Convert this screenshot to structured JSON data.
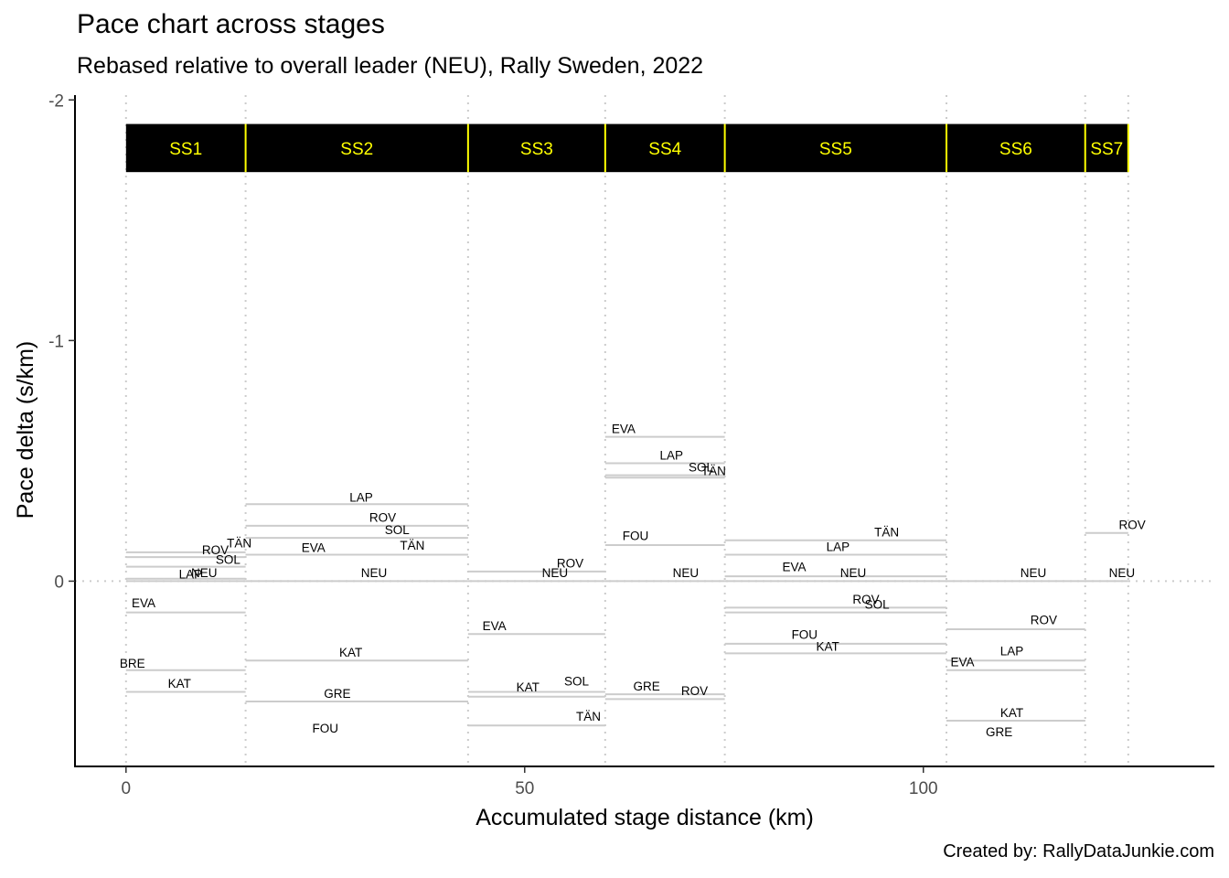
{
  "title": "Pace chart across stages",
  "subtitle": "Rebased relative to overall leader (NEU), Rally Sweden, 2022",
  "caption": "Created by: RallyDataJunkie.com",
  "chart_data": {
    "type": "line",
    "xlabel": "Accumulated stage distance (km)",
    "ylabel": "Pace delta (s/km)",
    "xlim": [
      -6.4,
      136.5
    ],
    "ylim": [
      0.77,
      -2.02
    ],
    "y_reversed": true,
    "xticks": [
      0,
      50,
      100
    ],
    "yticks": [
      -2,
      -1,
      0
    ],
    "grid": false,
    "colors": {
      "pace_line": "#cccccc",
      "boundary_line": "#cccccc",
      "stage_band": "#000000",
      "stage_label": "#ffff00",
      "stage_divider": "#ffff00"
    },
    "stage_boundaries": [
      0,
      15,
      42.9,
      60.1,
      75.1,
      102.9,
      120.3,
      125.7
    ],
    "stages": [
      {
        "name": "SS1",
        "start": 0,
        "end": 15
      },
      {
        "name": "SS2",
        "start": 15,
        "end": 42.9
      },
      {
        "name": "SS3",
        "start": 42.9,
        "end": 60.1
      },
      {
        "name": "SS4",
        "start": 60.1,
        "end": 75.1
      },
      {
        "name": "SS5",
        "start": 75.1,
        "end": 102.9
      },
      {
        "name": "SS6",
        "start": 102.9,
        "end": 120.3
      },
      {
        "name": "SS7",
        "start": 120.3,
        "end": 125.7
      }
    ],
    "stage_band_y": [
      -1.9,
      -1.7
    ],
    "segments": [
      {
        "label": "TÄN",
        "x0": 0,
        "x1": 15,
        "y": -0.12,
        "label_x": 14.2,
        "label_y": -0.16
      },
      {
        "label": "ROV",
        "x0": 0,
        "x1": 15,
        "y": -0.1,
        "label_x": 11.2,
        "label_y": -0.13
      },
      {
        "label": "SOL",
        "x0": 0,
        "x1": 15,
        "y": -0.06,
        "label_x": 12.8,
        "label_y": -0.09
      },
      {
        "label": "LAP",
        "x0": 0,
        "x1": 15,
        "y": -0.01,
        "label_x": 8.1,
        "label_y": -0.03
      },
      {
        "label": "NEU",
        "x0": 0,
        "x1": 15,
        "y": 0,
        "label_x": 9.8,
        "label_y": -0.035
      },
      {
        "label": "EVA",
        "x0": 0,
        "x1": 15,
        "y": 0.13,
        "label_x": 2.2,
        "label_y": 0.09
      },
      {
        "label": "BRE",
        "x0": 0,
        "x1": 15,
        "y": 0.37,
        "label_x": 0.8,
        "label_y": 0.34
      },
      {
        "label": "KAT",
        "x0": 0,
        "x1": 15,
        "y": 0.46,
        "label_x": 6.7,
        "label_y": 0.425
      },
      {
        "label": "LAP",
        "x0": 15,
        "x1": 42.9,
        "y": -0.32,
        "label_x": 29.5,
        "label_y": -0.35
      },
      {
        "label": "ROV",
        "x0": 15,
        "x1": 42.9,
        "y": -0.23,
        "label_x": 32.2,
        "label_y": -0.265
      },
      {
        "label": "SOL",
        "x0": 15,
        "x1": 42.9,
        "y": -0.18,
        "label_x": 34,
        "label_y": -0.215
      },
      {
        "label": "TÄN",
        "x0": 15,
        "x1": 42.9,
        "y": -0.11,
        "label_x": 35.9,
        "label_y": -0.15
      },
      {
        "label": "EVA",
        "x0": 15,
        "x1": 42.9,
        "y": -0.11,
        "label_x": 23.5,
        "label_y": -0.14
      },
      {
        "label": "NEU",
        "x0": 15,
        "x1": 42.9,
        "y": 0,
        "label_x": 31.1,
        "label_y": -0.035
      },
      {
        "label": "KAT",
        "x0": 15,
        "x1": 42.9,
        "y": 0.33,
        "label_x": 28.2,
        "label_y": 0.295
      },
      {
        "label": "GRE",
        "x0": 15,
        "x1": 42.9,
        "y": 0.5,
        "label_x": 26.5,
        "label_y": 0.465
      },
      {
        "label": "FOU",
        "x0": 15,
        "x1": 42.9,
        "y": 0.5,
        "label_x": 25,
        "label_y": 0.61
      },
      {
        "label": "ROV",
        "x0": 42.9,
        "x1": 60.1,
        "y": -0.04,
        "label_x": 55.7,
        "label_y": -0.075
      },
      {
        "label": "NEU",
        "x0": 42.9,
        "x1": 60.1,
        "y": 0,
        "label_x": 53.8,
        "label_y": -0.035
      },
      {
        "label": "EVA",
        "x0": 42.9,
        "x1": 60.1,
        "y": 0.22,
        "label_x": 46.2,
        "label_y": 0.185
      },
      {
        "label": "SOL",
        "x0": 42.9,
        "x1": 60.1,
        "y": 0.46,
        "label_x": 56.5,
        "label_y": 0.415
      },
      {
        "label": "KAT",
        "x0": 42.9,
        "x1": 60.1,
        "y": 0.48,
        "label_x": 50.4,
        "label_y": 0.44
      },
      {
        "label": "TÄN",
        "x0": 42.9,
        "x1": 60.1,
        "y": 0.6,
        "label_x": 58,
        "label_y": 0.56
      },
      {
        "label": "EVA",
        "x0": 60.1,
        "x1": 75.1,
        "y": -0.6,
        "label_x": 62.4,
        "label_y": -0.635
      },
      {
        "label": "LAP",
        "x0": 60.1,
        "x1": 75.1,
        "y": -0.49,
        "label_x": 68.4,
        "label_y": -0.525
      },
      {
        "label": "SOL",
        "x0": 60.1,
        "x1": 75.1,
        "y": -0.44,
        "label_x": 72.1,
        "label_y": -0.475
      },
      {
        "label": "TÄN",
        "x0": 60.1,
        "x1": 75.1,
        "y": -0.43,
        "label_x": 73.7,
        "label_y": -0.46
      },
      {
        "label": "FOU",
        "x0": 60.1,
        "x1": 75.1,
        "y": -0.15,
        "label_x": 63.9,
        "label_y": -0.19
      },
      {
        "label": "NEU",
        "x0": 60.1,
        "x1": 75.1,
        "y": 0,
        "label_x": 70.2,
        "label_y": -0.035
      },
      {
        "label": "GRE",
        "x0": 60.1,
        "x1": 75.1,
        "y": 0.47,
        "label_x": 65.3,
        "label_y": 0.435
      },
      {
        "label": "ROV",
        "x0": 60.1,
        "x1": 75.1,
        "y": 0.49,
        "label_x": 71.3,
        "label_y": 0.455
      },
      {
        "label": "TÄN",
        "x0": 75.1,
        "x1": 102.9,
        "y": -0.17,
        "label_x": 95.4,
        "label_y": -0.205
      },
      {
        "label": "LAP",
        "x0": 75.1,
        "x1": 102.9,
        "y": -0.11,
        "label_x": 89.3,
        "label_y": -0.145
      },
      {
        "label": "EVA",
        "x0": 75.1,
        "x1": 102.9,
        "y": -0.02,
        "label_x": 83.8,
        "label_y": -0.06
      },
      {
        "label": "NEU",
        "x0": 75.1,
        "x1": 102.9,
        "y": 0,
        "label_x": 91.2,
        "label_y": -0.035
      },
      {
        "label": "ROV",
        "x0": 75.1,
        "x1": 102.9,
        "y": 0.11,
        "label_x": 92.8,
        "label_y": 0.075
      },
      {
        "label": "SOL",
        "x0": 75.1,
        "x1": 102.9,
        "y": 0.13,
        "label_x": 94.2,
        "label_y": 0.095
      },
      {
        "label": "FOU",
        "x0": 75.1,
        "x1": 102.9,
        "y": 0.26,
        "label_x": 85.1,
        "label_y": 0.22
      },
      {
        "label": "KAT",
        "x0": 75.1,
        "x1": 102.9,
        "y": 0.3,
        "label_x": 88,
        "label_y": 0.27
      },
      {
        "label": "NEU",
        "x0": 102.9,
        "x1": 120.3,
        "y": 0,
        "label_x": 113.8,
        "label_y": -0.035
      },
      {
        "label": "ROV",
        "x0": 102.9,
        "x1": 120.3,
        "y": 0.2,
        "label_x": 115.1,
        "label_y": 0.16
      },
      {
        "label": "LAP",
        "x0": 102.9,
        "x1": 120.3,
        "y": 0.33,
        "label_x": 111.1,
        "label_y": 0.29
      },
      {
        "label": "EVA",
        "x0": 102.9,
        "x1": 120.3,
        "y": 0.37,
        "label_x": 104.9,
        "label_y": 0.335
      },
      {
        "label": "KAT",
        "x0": 102.9,
        "x1": 120.3,
        "y": 0.58,
        "label_x": 111.1,
        "label_y": 0.545
      },
      {
        "label": "GRE",
        "x0": 102.9,
        "x1": 120.3,
        "y": 0.58,
        "label_x": 109.5,
        "label_y": 0.625
      },
      {
        "label": "ROV",
        "x0": 120.3,
        "x1": 125.7,
        "y": -0.2,
        "label_x": 126.2,
        "label_y": -0.235
      },
      {
        "label": "NEU",
        "x0": 120.3,
        "x1": 125.7,
        "y": 0,
        "label_x": 124.9,
        "label_y": -0.035
      }
    ]
  }
}
